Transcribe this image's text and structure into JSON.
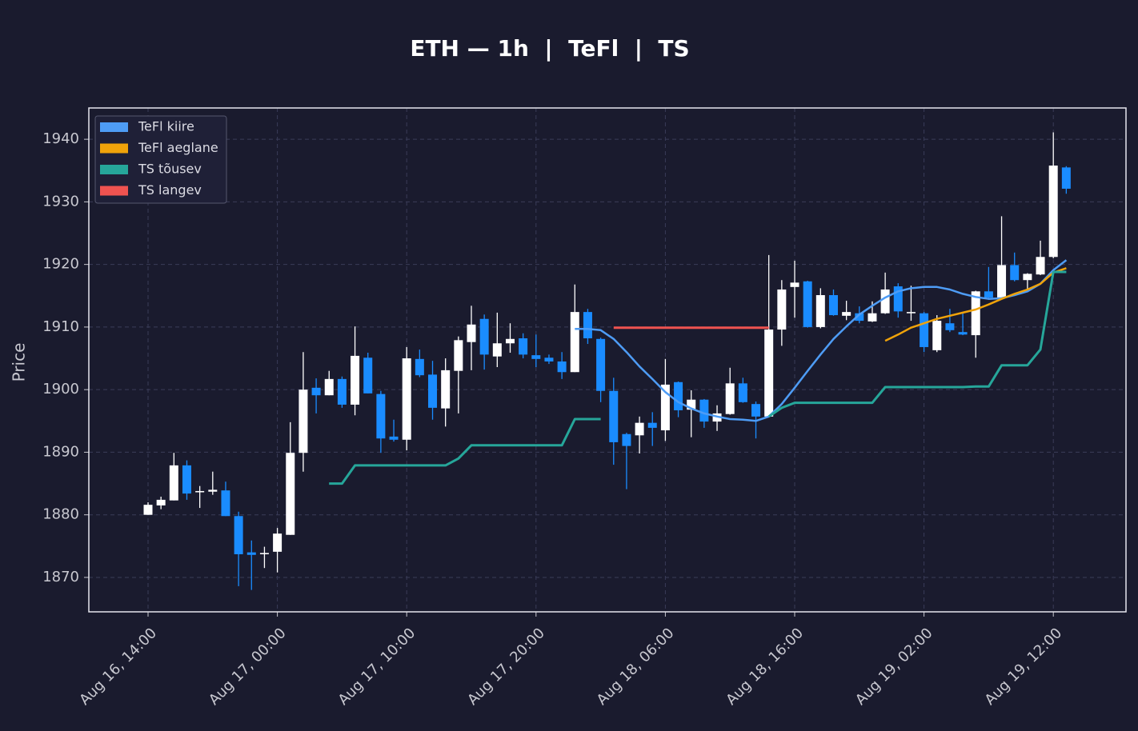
{
  "chart_data": {
    "type": "candlestick",
    "title": "ETH — 1h  |  TeFl  |  TS",
    "y_label": "Price",
    "x": [
      "Aug 16, 14:00",
      "Aug 16, 15:00",
      "Aug 16, 16:00",
      "Aug 16, 17:00",
      "Aug 16, 18:00",
      "Aug 16, 19:00",
      "Aug 16, 20:00",
      "Aug 16, 21:00",
      "Aug 16, 22:00",
      "Aug 16, 23:00",
      "Aug 17, 00:00",
      "Aug 17, 01:00",
      "Aug 17, 02:00",
      "Aug 17, 03:00",
      "Aug 17, 04:00",
      "Aug 17, 05:00",
      "Aug 17, 06:00",
      "Aug 17, 07:00",
      "Aug 17, 08:00",
      "Aug 17, 09:00",
      "Aug 17, 10:00",
      "Aug 17, 11:00",
      "Aug 17, 12:00",
      "Aug 17, 13:00",
      "Aug 17, 14:00",
      "Aug 17, 15:00",
      "Aug 17, 16:00",
      "Aug 17, 17:00",
      "Aug 17, 18:00",
      "Aug 17, 19:00",
      "Aug 17, 20:00",
      "Aug 17, 21:00",
      "Aug 17, 22:00",
      "Aug 17, 23:00",
      "Aug 18, 00:00",
      "Aug 18, 01:00",
      "Aug 18, 02:00",
      "Aug 18, 03:00",
      "Aug 18, 04:00",
      "Aug 18, 05:00",
      "Aug 18, 06:00",
      "Aug 18, 07:00",
      "Aug 18, 08:00",
      "Aug 18, 09:00",
      "Aug 18, 10:00",
      "Aug 18, 11:00",
      "Aug 18, 12:00",
      "Aug 18, 13:00",
      "Aug 18, 14:00",
      "Aug 18, 15:00",
      "Aug 18, 16:00",
      "Aug 18, 17:00",
      "Aug 18, 18:00",
      "Aug 18, 19:00",
      "Aug 18, 20:00",
      "Aug 18, 21:00",
      "Aug 18, 22:00",
      "Aug 18, 23:00",
      "Aug 19, 00:00",
      "Aug 19, 01:00",
      "Aug 19, 02:00",
      "Aug 19, 03:00",
      "Aug 19, 04:00",
      "Aug 19, 05:00",
      "Aug 19, 06:00",
      "Aug 19, 07:00",
      "Aug 19, 08:00",
      "Aug 19, 09:00",
      "Aug 19, 10:00",
      "Aug 19, 11:00",
      "Aug 19, 12:00",
      "Aug 19, 13:00"
    ],
    "open": [
      1880.0,
      1881.5,
      1882.3,
      1887.9,
      1883.6,
      1883.7,
      1883.9,
      1879.8,
      1874.0,
      1873.7,
      1874.1,
      1876.8,
      1889.9,
      1900.3,
      1899.1,
      1901.7,
      1897.6,
      1905.1,
      1899.3,
      1892.5,
      1892.0,
      1904.9,
      1902.4,
      1897.0,
      1903.0,
      1907.6,
      1911.3,
      1905.3,
      1907.4,
      1908.2,
      1905.5,
      1905.1,
      1904.5,
      1902.8,
      1912.4,
      1908.1,
      1899.8,
      1892.9,
      1892.7,
      1894.7,
      1893.5,
      1901.2,
      1896.8,
      1898.4,
      1894.9,
      1896.1,
      1901.0,
      1897.7,
      1895.7,
      1909.6,
      1916.4,
      1917.3,
      1910.0,
      1915.1,
      1911.8,
      1912.2,
      1910.9,
      1912.2,
      1916.5,
      1912.2,
      1912.2,
      1906.3,
      1910.6,
      1909.2,
      1908.7,
      1915.7,
      1914.7,
      1919.9,
      1917.5,
      1918.4,
      1921.2,
      1935.5
    ],
    "high": [
      1882.0,
      1882.9,
      1889.9,
      1888.7,
      1884.6,
      1886.9,
      1885.3,
      1880.5,
      1875.9,
      1874.9,
      1877.9,
      1894.8,
      1906.0,
      1901.8,
      1903.0,
      1902.1,
      1910.1,
      1905.9,
      1899.8,
      1895.2,
      1906.8,
      1906.4,
      1904.6,
      1905.0,
      1908.5,
      1913.4,
      1912.0,
      1912.3,
      1910.6,
      1909.0,
      1908.8,
      1905.6,
      1906.0,
      1916.8,
      1912.9,
      1908.3,
      1901.9,
      1893.1,
      1895.7,
      1896.4,
      1904.9,
      1901.3,
      1899.9,
      1898.5,
      1897.5,
      1903.5,
      1901.9,
      1898.1,
      1921.5,
      1917.5,
      1920.6,
      1917.4,
      1916.2,
      1916.0,
      1914.2,
      1913.3,
      1914.1,
      1918.7,
      1917.0,
      1916.6,
      1912.4,
      1911.9,
      1912.9,
      1912.4,
      1915.8,
      1919.6,
      1927.7,
      1921.9,
      1918.6,
      1923.8,
      1941.1,
      1935.7
    ],
    "low": [
      1880.0,
      1880.9,
      1882.3,
      1882.4,
      1881.1,
      1883.2,
      1879.8,
      1868.6,
      1868.0,
      1871.5,
      1870.8,
      1876.8,
      1886.9,
      1896.2,
      1899.1,
      1897.1,
      1895.9,
      1899.4,
      1889.9,
      1891.7,
      1890.3,
      1902.0,
      1895.2,
      1894.1,
      1896.2,
      1903.1,
      1903.2,
      1903.6,
      1905.9,
      1905.0,
      1903.6,
      1904.1,
      1901.7,
      1902.8,
      1907.3,
      1898.0,
      1888.0,
      1884.1,
      1889.8,
      1891.0,
      1891.8,
      1895.6,
      1892.4,
      1893.9,
      1893.4,
      1896.0,
      1897.9,
      1892.2,
      1895.6,
      1907.0,
      1911.5,
      1909.9,
      1909.8,
      1911.8,
      1911.1,
      1910.6,
      1910.8,
      1912.1,
      1911.5,
      1911.0,
      1906.0,
      1906.0,
      1909.2,
      1908.7,
      1905.1,
      1914.6,
      1914.6,
      1917.3,
      1916.1,
      1918.3,
      1921.0,
      1931.3
    ],
    "close": [
      1881.6,
      1882.4,
      1887.9,
      1883.4,
      1883.8,
      1884.0,
      1879.8,
      1873.7,
      1873.6,
      1873.9,
      1877.0,
      1889.9,
      1900.0,
      1899.1,
      1901.7,
      1897.6,
      1905.4,
      1899.4,
      1892.2,
      1892.0,
      1905.0,
      1902.3,
      1897.1,
      1903.1,
      1907.9,
      1910.4,
      1905.6,
      1907.4,
      1908.1,
      1905.6,
      1904.9,
      1904.5,
      1902.8,
      1912.4,
      1908.2,
      1899.8,
      1891.6,
      1891.0,
      1894.7,
      1893.9,
      1900.8,
      1896.7,
      1898.4,
      1894.9,
      1896.2,
      1901.0,
      1898.0,
      1895.7,
      1909.6,
      1916.0,
      1917.1,
      1910.0,
      1915.1,
      1911.9,
      1912.4,
      1911.0,
      1912.2,
      1916.0,
      1912.5,
      1912.4,
      1906.8,
      1911.0,
      1909.5,
      1908.8,
      1915.7,
      1914.7,
      1919.9,
      1917.5,
      1918.5,
      1921.2,
      1935.8,
      1932.1
    ],
    "up_color": "#ffffff",
    "down_color": "#1a8cff",
    "series": [
      {
        "name": "TeFl kiire",
        "color": "#4e9cf5",
        "values": [
          null,
          null,
          null,
          null,
          null,
          null,
          null,
          null,
          null,
          null,
          null,
          null,
          null,
          null,
          null,
          null,
          null,
          null,
          null,
          null,
          null,
          null,
          null,
          null,
          null,
          null,
          null,
          null,
          null,
          null,
          null,
          null,
          null,
          1909.7,
          1909.7,
          1909.5,
          1908.1,
          1906.0,
          1903.7,
          1901.7,
          1899.6,
          1898.0,
          1897.0,
          1896.2,
          1895.7,
          1895.3,
          1895.2,
          1895.0,
          1895.7,
          1897.7,
          1900.3,
          1903.0,
          1905.6,
          1908.1,
          1910.1,
          1912.0,
          1913.4,
          1914.7,
          1915.7,
          1916.2,
          1916.4,
          1916.4,
          1916.0,
          1915.3,
          1914.8,
          1914.5,
          1914.6,
          1915.1,
          1915.7,
          1916.9,
          1919.1,
          1920.7
        ]
      },
      {
        "name": "TeFl aeglane",
        "color": "#f0a30a",
        "values": [
          null,
          null,
          null,
          null,
          null,
          null,
          null,
          null,
          null,
          null,
          null,
          null,
          null,
          null,
          null,
          null,
          null,
          null,
          null,
          null,
          null,
          null,
          null,
          null,
          null,
          null,
          null,
          null,
          null,
          null,
          null,
          null,
          null,
          null,
          null,
          null,
          null,
          null,
          null,
          null,
          null,
          null,
          null,
          null,
          null,
          null,
          null,
          null,
          null,
          null,
          null,
          null,
          null,
          null,
          null,
          null,
          null,
          1907.8,
          1908.8,
          1909.9,
          1910.6,
          1911.3,
          1911.8,
          1912.3,
          1912.8,
          1913.6,
          1914.5,
          1915.3,
          1916.0,
          1916.9,
          1918.7,
          1919.4
        ]
      },
      {
        "name": "TS tõusev",
        "color": "#26a69a",
        "values": [
          null,
          null,
          null,
          null,
          null,
          null,
          null,
          null,
          null,
          null,
          null,
          null,
          null,
          null,
          1885.0,
          1885.0,
          1887.9,
          1887.9,
          1887.9,
          1887.9,
          1887.9,
          1887.9,
          1887.9,
          1887.9,
          1889.0,
          1891.1,
          1891.1,
          1891.1,
          1891.1,
          1891.1,
          1891.1,
          1891.1,
          1891.1,
          1895.3,
          1895.3,
          1895.3,
          null,
          null,
          null,
          null,
          null,
          null,
          null,
          null,
          null,
          null,
          null,
          null,
          1895.7,
          1897.1,
          1897.9,
          1897.9,
          1897.9,
          1897.9,
          1897.9,
          1897.9,
          1897.9,
          1900.4,
          1900.4,
          1900.4,
          1900.4,
          1900.4,
          1900.4,
          1900.4,
          1900.5,
          1900.5,
          1903.9,
          1903.9,
          1903.9,
          1906.4,
          1918.8,
          1918.8
        ]
      },
      {
        "name": "TS langev",
        "color": "#ef5350",
        "values": [
          null,
          null,
          null,
          null,
          null,
          null,
          null,
          null,
          null,
          null,
          null,
          null,
          null,
          null,
          null,
          null,
          null,
          null,
          null,
          null,
          null,
          null,
          null,
          null,
          null,
          null,
          null,
          null,
          null,
          null,
          null,
          null,
          null,
          null,
          null,
          null,
          1909.9,
          1909.9,
          1909.9,
          1909.9,
          1909.9,
          1909.9,
          1909.9,
          1909.9,
          1909.9,
          1909.9,
          1909.9,
          1909.9,
          1909.9,
          null,
          null,
          null,
          null,
          null,
          null,
          null,
          null,
          null,
          null,
          null,
          null,
          null,
          null,
          null,
          null,
          null,
          null,
          null,
          null,
          null,
          null,
          null
        ]
      }
    ],
    "ylim": [
      1864.5,
      1945
    ],
    "yticks": [
      1870,
      1880,
      1890,
      1900,
      1910,
      1920,
      1930,
      1940
    ],
    "xticks": [
      "Aug 16, 14:00",
      "Aug 17, 00:00",
      "Aug 17, 10:00",
      "Aug 17, 20:00",
      "Aug 18, 06:00",
      "Aug 18, 16:00",
      "Aug 19, 02:00",
      "Aug 19, 12:00"
    ],
    "grid": true,
    "legend": "upper left"
  }
}
